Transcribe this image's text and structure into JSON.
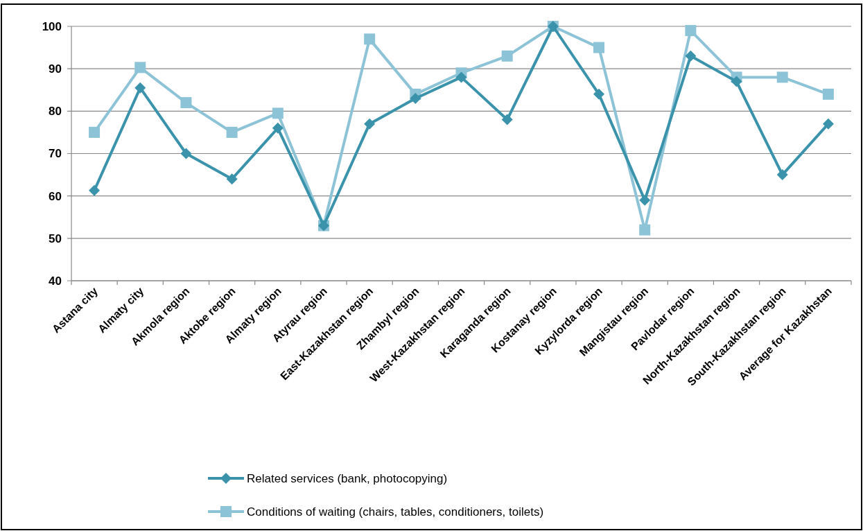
{
  "chart_data": {
    "type": "line",
    "categories": [
      "Astana city",
      "Almaty city",
      "Akmola region",
      "Aktobe region",
      "Almaty region",
      "Atyrau region",
      "East-Kazakhstan region",
      "Zhambyl region",
      "West-Kazakhstan region",
      "Karaganda region",
      "Kostanay region",
      "Kyzylorda region",
      "Mangistau region",
      "Pavlodar region",
      "North-Kazakhstan region",
      "South-Kazakhstan region",
      "Average for Kazakhstan"
    ],
    "series": [
      {
        "name": "Related services (bank, photocopying)",
        "color": "#3a93ab",
        "marker": "diamond",
        "values": [
          61.3,
          85.5,
          70,
          64,
          76,
          53,
          77,
          83,
          88,
          78,
          100,
          84,
          59,
          93,
          87,
          65,
          77
        ]
      },
      {
        "name": "Conditions of waiting (chairs, tables, conditioners, toilets)",
        "color": "#8dc3d6",
        "marker": "square",
        "values": [
          75,
          90.3,
          82,
          75,
          79.5,
          53,
          97,
          84,
          89,
          93,
          100,
          95,
          52,
          99,
          88,
          88,
          84
        ]
      }
    ],
    "ylim": [
      40,
      100
    ],
    "yticks": [
      40,
      50,
      60,
      70,
      80,
      90,
      100
    ],
    "grid": "y",
    "legend": "bottom"
  }
}
